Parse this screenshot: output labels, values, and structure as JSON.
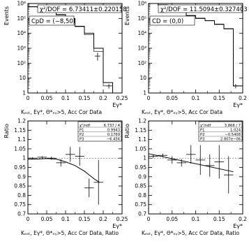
{
  "chart_data": [
    {
      "type": "step",
      "ylabel": "Events",
      "xlabel": "Eγ*",
      "caption": "Kₑₒₜ, Eγ*, Θ*ₑᵧ>5, Acc Cor Data",
      "stat_line1": "χ²/DOF = 6.73411±0.220158",
      "stat_line2": "CpD = (−8,50)",
      "xlim": [
        0,
        0.25
      ],
      "ylim_log": [
        1,
        1000000
      ],
      "yscale": "log",
      "x_ticks": [
        "0",
        "0.05",
        "0.1",
        "0.15",
        "0.2",
        "0.25"
      ],
      "y_ticks": [
        "1",
        "10",
        "10²",
        "10³",
        "10⁴",
        "10⁵",
        "10⁶"
      ],
      "bin_edges": [
        0,
        0.025,
        0.05,
        0.075,
        0.1,
        0.125,
        0.15,
        0.175,
        0.2,
        0.225
      ],
      "histogram": [
        600000,
        550000,
        300000,
        180000,
        100000,
        30000,
        10000,
        1000,
        5
      ],
      "fit_bin_edges": [
        0,
        0.025,
        0.05,
        0.075,
        0.1,
        0.125,
        0.15,
        0.175,
        0.2,
        0.225
      ],
      "fit": [
        620000,
        560000,
        320000,
        170000,
        90000,
        28000,
        8000,
        600,
        3
      ],
      "points": [
        {
          "x": 0.185,
          "y": 300,
          "ylo": 150,
          "yhi": 500
        },
        {
          "x": 0.215,
          "y": 3,
          "ylo": 2,
          "yhi": 4
        }
      ]
    },
    {
      "type": "step",
      "ylabel": "Events",
      "xlabel": "Eγ*",
      "caption": "Kₑₒₜ, Eγ*, Θ*ₑᵧ>5, Acc Cor Data",
      "stat_line1": "χ²/DOF = 11.5094±0.327403",
      "stat_line2": "CD = (0,0)",
      "xlim": [
        0,
        0.2
      ],
      "ylim_log": [
        1,
        1000000
      ],
      "yscale": "log",
      "x_ticks": [
        "0",
        "0.05",
        "0.1",
        "0.15",
        "0.2"
      ],
      "y_ticks": [
        "1",
        "10",
        "10²",
        "10³",
        "10⁴",
        "10⁵",
        "10⁶"
      ],
      "bin_edges": [
        0,
        0.02,
        0.04,
        0.06,
        0.08,
        0.1,
        0.12,
        0.14,
        0.16,
        0.18,
        0.2
      ],
      "histogram": [
        1200000,
        800000,
        500000,
        300000,
        150000,
        100000,
        70000,
        40000,
        20000,
        3
      ],
      "fit_bin_edges": [
        0,
        0.02,
        0.04,
        0.06,
        0.08,
        0.1,
        0.12,
        0.14,
        0.16,
        0.18,
        0.2
      ],
      "fit": [
        1250000,
        830000,
        520000,
        310000,
        160000,
        105000,
        72000,
        42000,
        21000,
        3
      ],
      "points": [
        {
          "x": 0.185,
          "y": 3,
          "ylo": 2,
          "yhi": 4
        }
      ]
    },
    {
      "type": "scatter",
      "ylabel": "Ratio",
      "xlabel": "Eγ*",
      "caption": "Kₑₒₜ, Eγ*, Θ*ₑᵧ>5, Acc Cor Data, Ratio",
      "xlim": [
        0,
        0.25
      ],
      "ylim": [
        0.7,
        1.2
      ],
      "x_ticks": [
        "0",
        "0.05",
        "0.1",
        "0.15",
        "0.2",
        "0.25"
      ],
      "y_ticks": [
        "0.7",
        "0.75",
        "0.8",
        "0.85",
        "0.9",
        "0.95",
        "1",
        "1.05",
        "1.1",
        "1.15",
        "1.2"
      ],
      "stats_box": [
        [
          "χ²/ndf",
          "6.737 / 4"
        ],
        [
          "P1",
          "0.9943"
        ],
        [
          "P2",
          "0.1769"
        ],
        [
          "P3",
          "−6.456"
        ]
      ],
      "points": [
        {
          "x": 0.0125,
          "y": 1.0,
          "xerr": 0.0125,
          "yerr": 0.005
        },
        {
          "x": 0.0375,
          "y": 1.005,
          "xerr": 0.0125,
          "yerr": 0.005
        },
        {
          "x": 0.0625,
          "y": 1.0,
          "xerr": 0.0125,
          "yerr": 0.008
        },
        {
          "x": 0.0875,
          "y": 0.975,
          "xerr": 0.0125,
          "yerr": 0.02
        },
        {
          "x": 0.1125,
          "y": 1.02,
          "xerr": 0.0125,
          "yerr": 0.04
        },
        {
          "x": 0.1375,
          "y": 1.01,
          "xerr": 0.0125,
          "yerr": 0.05
        },
        {
          "x": 0.1625,
          "y": 0.84,
          "xerr": 0.0125,
          "yerr": 0.05
        },
        {
          "x": 0.1875,
          "y": 0.87,
          "xerr": 0.0125,
          "yerr": 0.12
        }
      ],
      "fit_curve": {
        "x": [
          0,
          0.025,
          0.05,
          0.075,
          0.1,
          0.125,
          0.15,
          0.175,
          0.19
        ],
        "y": [
          0.9943,
          0.995,
          0.998,
          0.995,
          0.98,
          0.96,
          0.93,
          0.89,
          0.87
        ]
      }
    },
    {
      "type": "scatter",
      "ylabel": "Ratio",
      "xlabel": "Eγ*",
      "caption": "Kₑₒₜ, Eγ*, Θ*ₑᵧ>5, Acc Cor Data, Ratio",
      "xlim": [
        0,
        0.2
      ],
      "ylim": [
        0.7,
        1.2
      ],
      "x_ticks": [
        "0",
        "0.05",
        "0.1",
        "0.15",
        "0.2"
      ],
      "y_ticks": [
        "0.7",
        "0.75",
        "0.8",
        "0.85",
        "0.9",
        "0.95",
        "1",
        "1.05",
        "1.1",
        "1.15",
        "1.2"
      ],
      "stats_box": [
        [
          "χ²/ndf",
          "3.868 / 7"
        ],
        [
          "P1",
          "1.024"
        ],
        [
          "P2",
          "−0.5408"
        ],
        [
          "P3",
          "2.807e−06"
        ]
      ],
      "points": [
        {
          "x": 0.01,
          "y": 1.01,
          "xerr": 0.01,
          "yerr": 0.01
        },
        {
          "x": 0.03,
          "y": 1.015,
          "xerr": 0.01,
          "yerr": 0.01
        },
        {
          "x": 0.05,
          "y": 0.99,
          "xerr": 0.01,
          "yerr": 0.02
        },
        {
          "x": 0.07,
          "y": 0.975,
          "xerr": 0.01,
          "yerr": 0.02
        },
        {
          "x": 0.09,
          "y": 1.02,
          "xerr": 0.01,
          "yerr": 0.05
        },
        {
          "x": 0.11,
          "y": 0.99,
          "xerr": 0.01,
          "yerr": 0.08
        },
        {
          "x": 0.13,
          "y": 0.96,
          "xerr": 0.01,
          "yerr": 0.06
        },
        {
          "x": 0.15,
          "y": 0.98,
          "xerr": 0.01,
          "yerr": 0.09
        },
        {
          "x": 0.17,
          "y": 0.91,
          "xerr": 0.01,
          "yerr": 0.1
        }
      ],
      "fit_curve": {
        "x": [
          0,
          0.18
        ],
        "y": [
          1.024,
          0.9267
        ]
      }
    }
  ]
}
